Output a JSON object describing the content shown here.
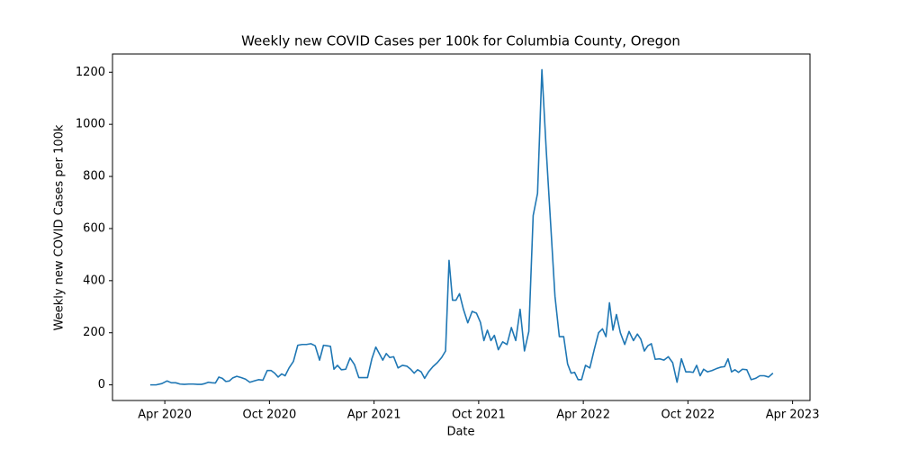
{
  "chart_data": {
    "type": "line",
    "title": "Weekly new COVID Cases per 100k for Columbia County, Oregon",
    "x_label": "Date",
    "y_label": "Weekly new COVID Cases per 100k",
    "color": "#1f77b4",
    "x": [
      "2020-03",
      "2020-03",
      "2020-03",
      "2020-04",
      "2020-04",
      "2020-04",
      "2020-04",
      "2020-05",
      "2020-05",
      "2020-05",
      "2020-05",
      "2020-06",
      "2020-06",
      "2020-06",
      "2020-06",
      "2020-06",
      "2020-07",
      "2020-07",
      "2020-07",
      "2020-07",
      "2020-07",
      "2020-08",
      "2020-08",
      "2020-08",
      "2020-08",
      "2020-09",
      "2020-09",
      "2020-09",
      "2020-09",
      "2020-10",
      "2020-10",
      "2020-10",
      "2020-10",
      "2020-10",
      "2020-11",
      "2020-11",
      "2020-11",
      "2020-11",
      "2020-12",
      "2020-12",
      "2020-12",
      "2020-12",
      "2021-01",
      "2021-01",
      "2021-01",
      "2021-01",
      "2021-01",
      "2021-02",
      "2021-02",
      "2021-02",
      "2021-02",
      "2021-03",
      "2021-03",
      "2021-03",
      "2021-03",
      "2021-04",
      "2021-04",
      "2021-04",
      "2021-04",
      "2021-04",
      "2021-05",
      "2021-05",
      "2021-05",
      "2021-05",
      "2021-06",
      "2021-06",
      "2021-06",
      "2021-06",
      "2021-06",
      "2021-07",
      "2021-07",
      "2021-07",
      "2021-07",
      "2021-08",
      "2021-08",
      "2021-08",
      "2021-08",
      "2021-08",
      "2021-09",
      "2021-09",
      "2021-09",
      "2021-09",
      "2021-10",
      "2021-10",
      "2021-10",
      "2021-10",
      "2021-10",
      "2021-11",
      "2021-11",
      "2021-11",
      "2021-11",
      "2021-12",
      "2021-12",
      "2021-12",
      "2021-12",
      "2022-01",
      "2022-01",
      "2022-01",
      "2022-01",
      "2022-02",
      "2022-02",
      "2022-02",
      "2022-02",
      "2022-03",
      "2022-03",
      "2022-03",
      "2022-03",
      "2022-03",
      "2022-04",
      "2022-04",
      "2022-04",
      "2022-04",
      "2022-05",
      "2022-05",
      "2022-05",
      "2022-05",
      "2022-05",
      "2022-06",
      "2022-06",
      "2022-06",
      "2022-06",
      "2022-07",
      "2022-07",
      "2022-07",
      "2022-07",
      "2022-07",
      "2022-08",
      "2022-08",
      "2022-08",
      "2022-08",
      "2022-09",
      "2022-09",
      "2022-09",
      "2022-09",
      "2022-10",
      "2022-10",
      "2022-10",
      "2022-10",
      "2022-10",
      "2022-11",
      "2022-11",
      "2022-11",
      "2022-11",
      "2022-12",
      "2022-12",
      "2022-12",
      "2022-12",
      "2022-12",
      "2023-01",
      "2023-01",
      "2023-01",
      "2023-01",
      "2023-02",
      "2023-02",
      "2023-02",
      "2023-02"
    ],
    "values": [
      0,
      0,
      5,
      15,
      8,
      8,
      3,
      2,
      3,
      3,
      2,
      2,
      5,
      10,
      8,
      7,
      30,
      25,
      13,
      15,
      27,
      33,
      28,
      22,
      10,
      15,
      20,
      18,
      55,
      55,
      45,
      30,
      42,
      35,
      65,
      90,
      152,
      155,
      155,
      158,
      150,
      95,
      152,
      150,
      148,
      60,
      75,
      58,
      60,
      103,
      78,
      28,
      28,
      28,
      100,
      145,
      120,
      95,
      120,
      105,
      108,
      65,
      75,
      72,
      60,
      45,
      58,
      50,
      25,
      50,
      70,
      85,
      105,
      130,
      478,
      325,
      325,
      350,
      290,
      238,
      282,
      275,
      240,
      170,
      210,
      170,
      190,
      135,
      165,
      155,
      220,
      170,
      290,
      130,
      205,
      650,
      735,
      1210,
      900,
      620,
      340,
      185,
      185,
      80,
      45,
      48,
      20,
      20,
      75,
      65,
      135,
      200,
      215,
      185,
      315,
      210,
      270,
      200,
      155,
      205,
      170,
      195,
      175,
      130,
      150,
      158,
      98,
      100,
      95,
      108,
      85,
      10,
      100,
      50,
      50,
      48,
      75,
      35,
      60,
      50,
      55,
      62,
      68,
      70,
      100,
      50,
      58,
      48,
      60,
      58,
      20,
      25,
      35,
      35,
      30,
      45
    ],
    "xlim": [
      "2020-01",
      "2023-05"
    ],
    "xticks": [
      {
        "value": "2020-04",
        "label": "Apr 2020"
      },
      {
        "value": "2020-10",
        "label": "Oct 2020"
      },
      {
        "value": "2021-04",
        "label": "Apr 2021"
      },
      {
        "value": "2021-10",
        "label": "Oct 2021"
      },
      {
        "value": "2022-04",
        "label": "Apr 2022"
      },
      {
        "value": "2022-10",
        "label": "Oct 2022"
      },
      {
        "value": "2023-04",
        "label": "Apr 2023"
      }
    ],
    "ylim": [
      -60,
      1270
    ],
    "yticks": [
      0,
      200,
      400,
      600,
      800,
      1000,
      1200
    ]
  }
}
